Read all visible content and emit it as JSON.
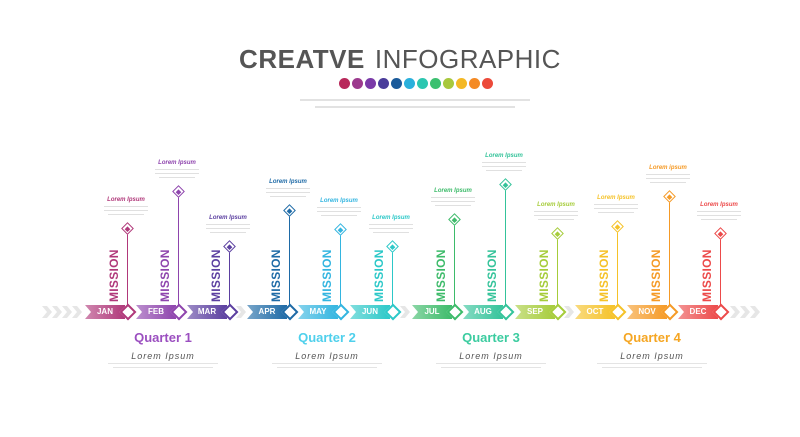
{
  "header": {
    "title_bold": "CREATVE",
    "title_light": "INFOGRAPHIC"
  },
  "palette": [
    "#b8285a",
    "#9c3a8e",
    "#7a3aa8",
    "#4a3c9a",
    "#1a5a9a",
    "#2ab0dc",
    "#2cc6b0",
    "#3cc070",
    "#a8c83c",
    "#f4b824",
    "#f48a24",
    "#ec4a3a"
  ],
  "months": [
    {
      "label": "JAN",
      "color": "#b0387a",
      "mission": "MISSION",
      "title": "Lorem Ipsum"
    },
    {
      "label": "FEB",
      "color": "#8e44ad",
      "mission": "MISSION",
      "title": "Lorem Ipsum"
    },
    {
      "label": "MAR",
      "color": "#5b3fa0",
      "mission": "MISSION",
      "title": "Lorem Ipsum"
    },
    {
      "label": "APR",
      "color": "#1e6aa6",
      "mission": "MISSION",
      "title": "Lorem Ipsum"
    },
    {
      "label": "MAY",
      "color": "#33b5e0",
      "mission": "MISSION",
      "title": "Lorem Ipsum"
    },
    {
      "label": "JUN",
      "color": "#2cc8c8",
      "mission": "MISSION",
      "title": "Lorem Ipsum"
    },
    {
      "label": "JUL",
      "color": "#3dbb6a",
      "mission": "MISSION",
      "title": "Lorem Ipsum"
    },
    {
      "label": "AUG",
      "color": "#34c39a",
      "mission": "MISSION",
      "title": "Lorem Ipsum"
    },
    {
      "label": "SEP",
      "color": "#a6cc3a",
      "mission": "MISSION",
      "title": "Lorem Ipsum"
    },
    {
      "label": "OCT",
      "color": "#f5c228",
      "mission": "MISSION",
      "title": "Lorem Ipsum"
    },
    {
      "label": "NOV",
      "color": "#f59a26",
      "mission": "MISSION",
      "title": "Lorem ipsum"
    },
    {
      "label": "DEC",
      "color": "#ec4a4a",
      "mission": "MISSION",
      "title": "Lorem Ipsum"
    }
  ],
  "quarters": [
    {
      "label": "Quarter 1",
      "sub": "Lorem  Ipsum",
      "color": "#9b4fc0"
    },
    {
      "label": "Quarter 2",
      "sub": "Lorem  Ipsum",
      "color": "#4fd0ec"
    },
    {
      "label": "Quarter 3",
      "sub": "Lorem  Ipsum",
      "color": "#3ccca0"
    },
    {
      "label": "Quarter 4",
      "sub": "Lorem  Ipsum",
      "color": "#f5a623"
    }
  ]
}
